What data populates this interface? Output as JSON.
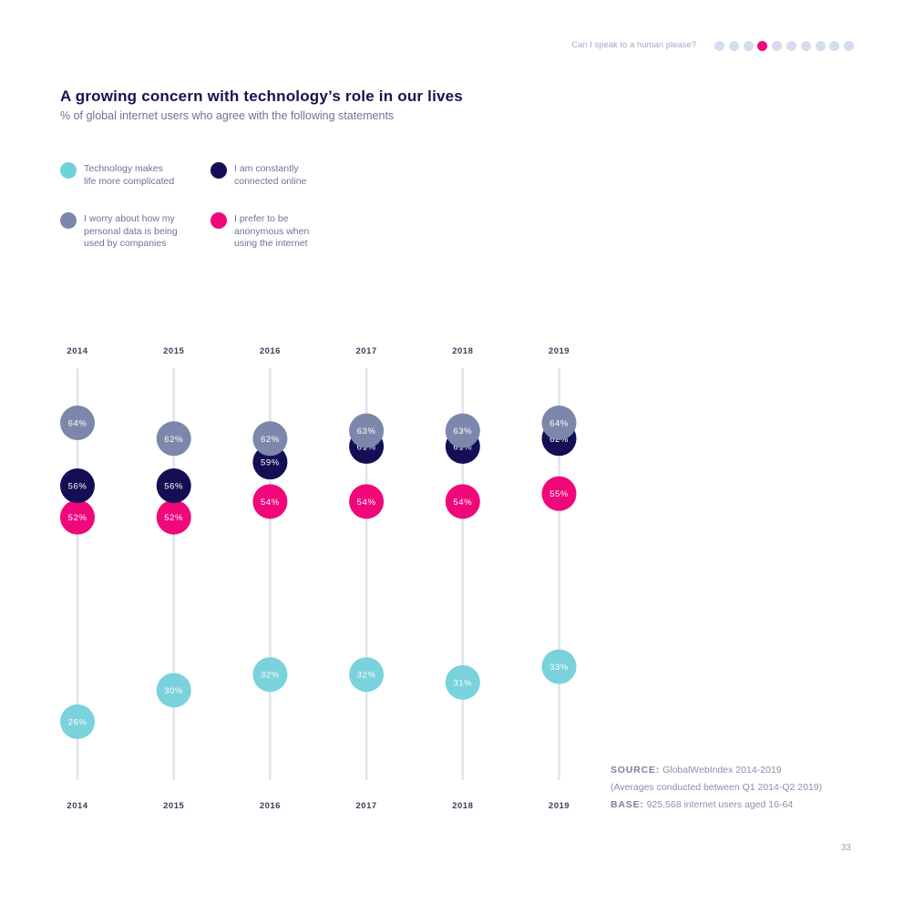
{
  "header": {
    "text": "Can I speak to a human please?",
    "dots": [
      {
        "color": "#d5dbf0"
      },
      {
        "color": "#d5dbf0"
      },
      {
        "color": "#d5dbf0"
      },
      {
        "color": "#f0087a"
      },
      {
        "color": "#d5dbf0"
      },
      {
        "color": "#d5dbf0"
      },
      {
        "color": "#d5dbf0"
      },
      {
        "color": "#d5dbf0"
      },
      {
        "color": "#d5dbf0"
      },
      {
        "color": "#d5dbf0"
      },
      {
        "color": "#d5dbf0"
      },
      {
        "color": "#d5dbf0"
      }
    ]
  },
  "legend": {
    "items": [
      {
        "label": "Technology makes\nlife more complicated",
        "color": "#6dd3d8"
      },
      {
        "label": "I am constantly\nconnected online",
        "color": "#140f55"
      },
      {
        "label": "I worry about how my\npersonal data is being\nused by companies",
        "color": "#7d87ab"
      },
      {
        "label": "I prefer to be\nanonymous when\nusing the internet",
        "color": "#f0087a"
      }
    ]
  },
  "chart_data": {
    "type": "scatter",
    "title": "A growing concern with technology’s role in our lives",
    "subtitle": "% of global internet users who agree with the following statements",
    "categories": [
      "2014",
      "2015",
      "2016",
      "2017",
      "2018",
      "2019"
    ],
    "ylim": [
      20,
      70
    ],
    "series": [
      {
        "name": "Technology makes life more complicated",
        "color": "#79d2dc",
        "values": [
          26,
          30,
          32,
          32,
          31,
          33
        ],
        "labels": [
          "26%",
          "30%",
          "32%",
          "32%",
          "31%",
          "33%"
        ]
      },
      {
        "name": "I prefer to be anonymous when using the internet",
        "color": "#f0087a",
        "values": [
          52,
          52,
          54,
          54,
          54,
          55
        ],
        "labels": [
          "52%",
          "52%",
          "54%",
          "54%",
          "54%",
          "55%"
        ]
      },
      {
        "name": "I am constantly connected online",
        "color": "#140f55",
        "values": [
          56,
          56,
          59,
          61,
          61,
          62
        ],
        "labels": [
          "56%",
          "56%",
          "59%",
          "61%",
          "61%",
          "62%"
        ]
      },
      {
        "name": "I worry about how my personal data is being used by companies",
        "color": "#7d87ab",
        "values": [
          64,
          62,
          62,
          63,
          63,
          64
        ],
        "labels": [
          "64%",
          "62%",
          "62%",
          "63%",
          "63%",
          "64%"
        ]
      }
    ]
  },
  "source": {
    "label": "SOURCE:",
    "text": "GlobalWebIndex 2014-2019",
    "note": "(Averages conducted between Q1 2014-Q2 2019)",
    "base_label": "BASE:",
    "base_text": "925,568 internet users aged 16-64"
  },
  "page": {
    "number": "33"
  }
}
